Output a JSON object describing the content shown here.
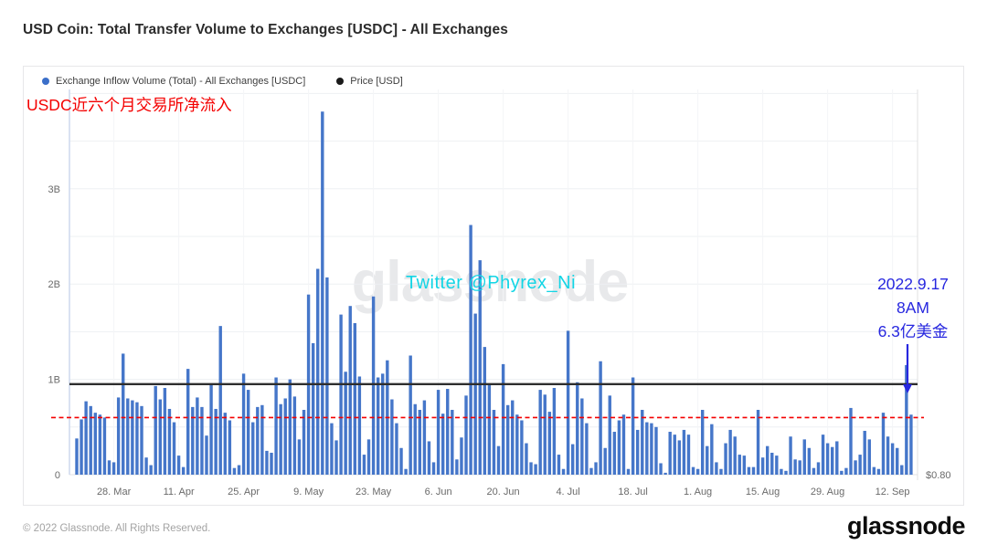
{
  "header": {
    "title": "USD Coin: Total Transfer Volume to Exchanges [USDC] - All Exchanges"
  },
  "legend": {
    "series": {
      "label": "Exchange Inflow Volume (Total) - All Exchanges [USDC]",
      "color": "#3b6fc9"
    },
    "price": {
      "label": "Price [USD]",
      "color": "#1a1a1a"
    }
  },
  "annotations": {
    "red_note": "USDC近六个月交易所净流入",
    "twitter": "Twitter @Phyrex_Ni",
    "event": {
      "date": "2022.9.17",
      "time": "8AM",
      "amount": "6.3亿美金"
    }
  },
  "watermark": "glassnode",
  "footer": {
    "copyright": "© 2022 Glassnode. All Rights Reserved.",
    "logo": "glassnode"
  },
  "colors": {
    "bar": "#4576c9",
    "price_line": "#2e2e2e",
    "red": "#f40000",
    "blue": "#2727df",
    "cyan": "#12d5e5",
    "watermark": "#e8e9eb",
    "grid": "#eef0f3",
    "grid_v": "#f4f5f7",
    "axis_left": "#cdd9ee",
    "axis_bottom": "#e3e3e5",
    "tick_text": "#6a6a6a"
  },
  "chart_data": {
    "type": "bar",
    "title": "USD Coin: Total Transfer Volume to Exchanges [USDC] - All Exchanges",
    "series_name": "Exchange Inflow Volume (Total) - All Exchanges [USDC]",
    "unit": "USD (billions)",
    "values_b": [
      0.38,
      0.58,
      0.77,
      0.72,
      0.65,
      0.63,
      0.6,
      0.15,
      0.13,
      0.81,
      1.27,
      0.8,
      0.78,
      0.76,
      0.72,
      0.18,
      0.1,
      0.93,
      0.79,
      0.91,
      0.69,
      0.55,
      0.2,
      0.08,
      1.11,
      0.71,
      0.81,
      0.71,
      0.41,
      0.95,
      0.69,
      1.56,
      0.65,
      0.57,
      0.07,
      0.1,
      1.06,
      0.89,
      0.55,
      0.71,
      0.73,
      0.25,
      0.23,
      1.02,
      0.74,
      0.8,
      1.0,
      0.82,
      0.37,
      0.68,
      1.89,
      1.38,
      2.16,
      3.81,
      2.07,
      0.54,
      0.36,
      1.68,
      1.08,
      1.77,
      1.59,
      1.03,
      0.21,
      0.37,
      1.87,
      1.02,
      1.06,
      1.2,
      0.79,
      0.54,
      0.28,
      0.06,
      1.25,
      0.74,
      0.68,
      0.78,
      0.35,
      0.13,
      0.89,
      0.64,
      0.9,
      0.68,
      0.16,
      0.39,
      0.83,
      2.62,
      1.69,
      2.25,
      1.34,
      0.95,
      0.68,
      0.3,
      1.16,
      0.73,
      0.78,
      0.63,
      0.57,
      0.33,
      0.13,
      0.11,
      0.89,
      0.84,
      0.66,
      0.91,
      0.21,
      0.06,
      1.51,
      0.32,
      0.97,
      0.8,
      0.54,
      0.07,
      0.13,
      1.19,
      0.28,
      0.83,
      0.45,
      0.57,
      0.63,
      0.06,
      1.02,
      0.47,
      0.68,
      0.55,
      0.54,
      0.5,
      0.12,
      0.02,
      0.45,
      0.42,
      0.36,
      0.47,
      0.42,
      0.08,
      0.06,
      0.68,
      0.3,
      0.53,
      0.13,
      0.06,
      0.33,
      0.47,
      0.4,
      0.21,
      0.2,
      0.08,
      0.08,
      0.68,
      0.18,
      0.3,
      0.23,
      0.2,
      0.06,
      0.04,
      0.4,
      0.16,
      0.15,
      0.37,
      0.28,
      0.07,
      0.13,
      0.42,
      0.33,
      0.29,
      0.35,
      0.04,
      0.07,
      0.7,
      0.15,
      0.21,
      0.46,
      0.37,
      0.08,
      0.06,
      0.65,
      0.4,
      0.33,
      0.28,
      0.1,
      1.15,
      0.63
    ],
    "x_ticks": [
      {
        "label": "28. Mar",
        "day": 8
      },
      {
        "label": "11. Apr",
        "day": 22
      },
      {
        "label": "25. Apr",
        "day": 36
      },
      {
        "label": "9. May",
        "day": 50
      },
      {
        "label": "23. May",
        "day": 64
      },
      {
        "label": "6. Jun",
        "day": 78
      },
      {
        "label": "20. Jun",
        "day": 92
      },
      {
        "label": "4. Jul",
        "day": 106
      },
      {
        "label": "18. Jul",
        "day": 120
      },
      {
        "label": "1. Aug",
        "day": 134
      },
      {
        "label": "15. Aug",
        "day": 148
      },
      {
        "label": "29. Aug",
        "day": 162
      },
      {
        "label": "12. Sep",
        "day": 176
      }
    ],
    "y_ticks": [
      {
        "label": "0",
        "v": 0
      },
      {
        "label": "1B",
        "v": 1
      },
      {
        "label": "2B",
        "v": 2
      },
      {
        "label": "3B",
        "v": 3
      }
    ],
    "ylim_b": [
      0,
      4.05
    ],
    "grid_step_b": 0.5,
    "grid": "on",
    "legend_position": "top-left",
    "price_line": {
      "label": "Price [USD]",
      "level_b_equiv": 0.95
    },
    "right_axis_label": "$0.80",
    "red_dashed_level_b": 0.6
  }
}
